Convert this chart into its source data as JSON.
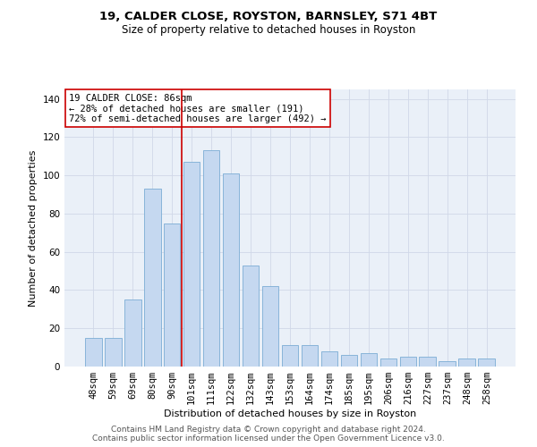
{
  "title1": "19, CALDER CLOSE, ROYSTON, BARNSLEY, S71 4BT",
  "title2": "Size of property relative to detached houses in Royston",
  "xlabel": "Distribution of detached houses by size in Royston",
  "ylabel": "Number of detached properties",
  "categories": [
    "48sqm",
    "59sqm",
    "69sqm",
    "80sqm",
    "90sqm",
    "101sqm",
    "111sqm",
    "122sqm",
    "132sqm",
    "143sqm",
    "153sqm",
    "164sqm",
    "174sqm",
    "185sqm",
    "195sqm",
    "206sqm",
    "216sqm",
    "227sqm",
    "237sqm",
    "248sqm",
    "258sqm"
  ],
  "values": [
    15,
    15,
    35,
    93,
    75,
    107,
    113,
    101,
    53,
    42,
    11,
    11,
    8,
    6,
    7,
    4,
    5,
    5,
    3,
    4,
    4
  ],
  "bar_color": "#c5d8f0",
  "bar_edge_color": "#7badd4",
  "vline_x": 4.5,
  "vline_color": "#cc0000",
  "annotation_text": "19 CALDER CLOSE: 86sqm\n← 28% of detached houses are smaller (191)\n72% of semi-detached houses are larger (492) →",
  "annotation_box_color": "#ffffff",
  "annotation_box_edge": "#cc0000",
  "ylim": [
    0,
    145
  ],
  "yticks": [
    0,
    20,
    40,
    60,
    80,
    100,
    120,
    140
  ],
  "grid_color": "#d0d8e8",
  "bg_color": "#eaf0f8",
  "footer_text": "Contains HM Land Registry data © Crown copyright and database right 2024.\nContains public sector information licensed under the Open Government Licence v3.0.",
  "title1_fontsize": 9.5,
  "title2_fontsize": 8.5,
  "xlabel_fontsize": 8,
  "ylabel_fontsize": 8,
  "tick_fontsize": 7.5,
  "annotation_fontsize": 7.5,
  "footer_fontsize": 6.5
}
